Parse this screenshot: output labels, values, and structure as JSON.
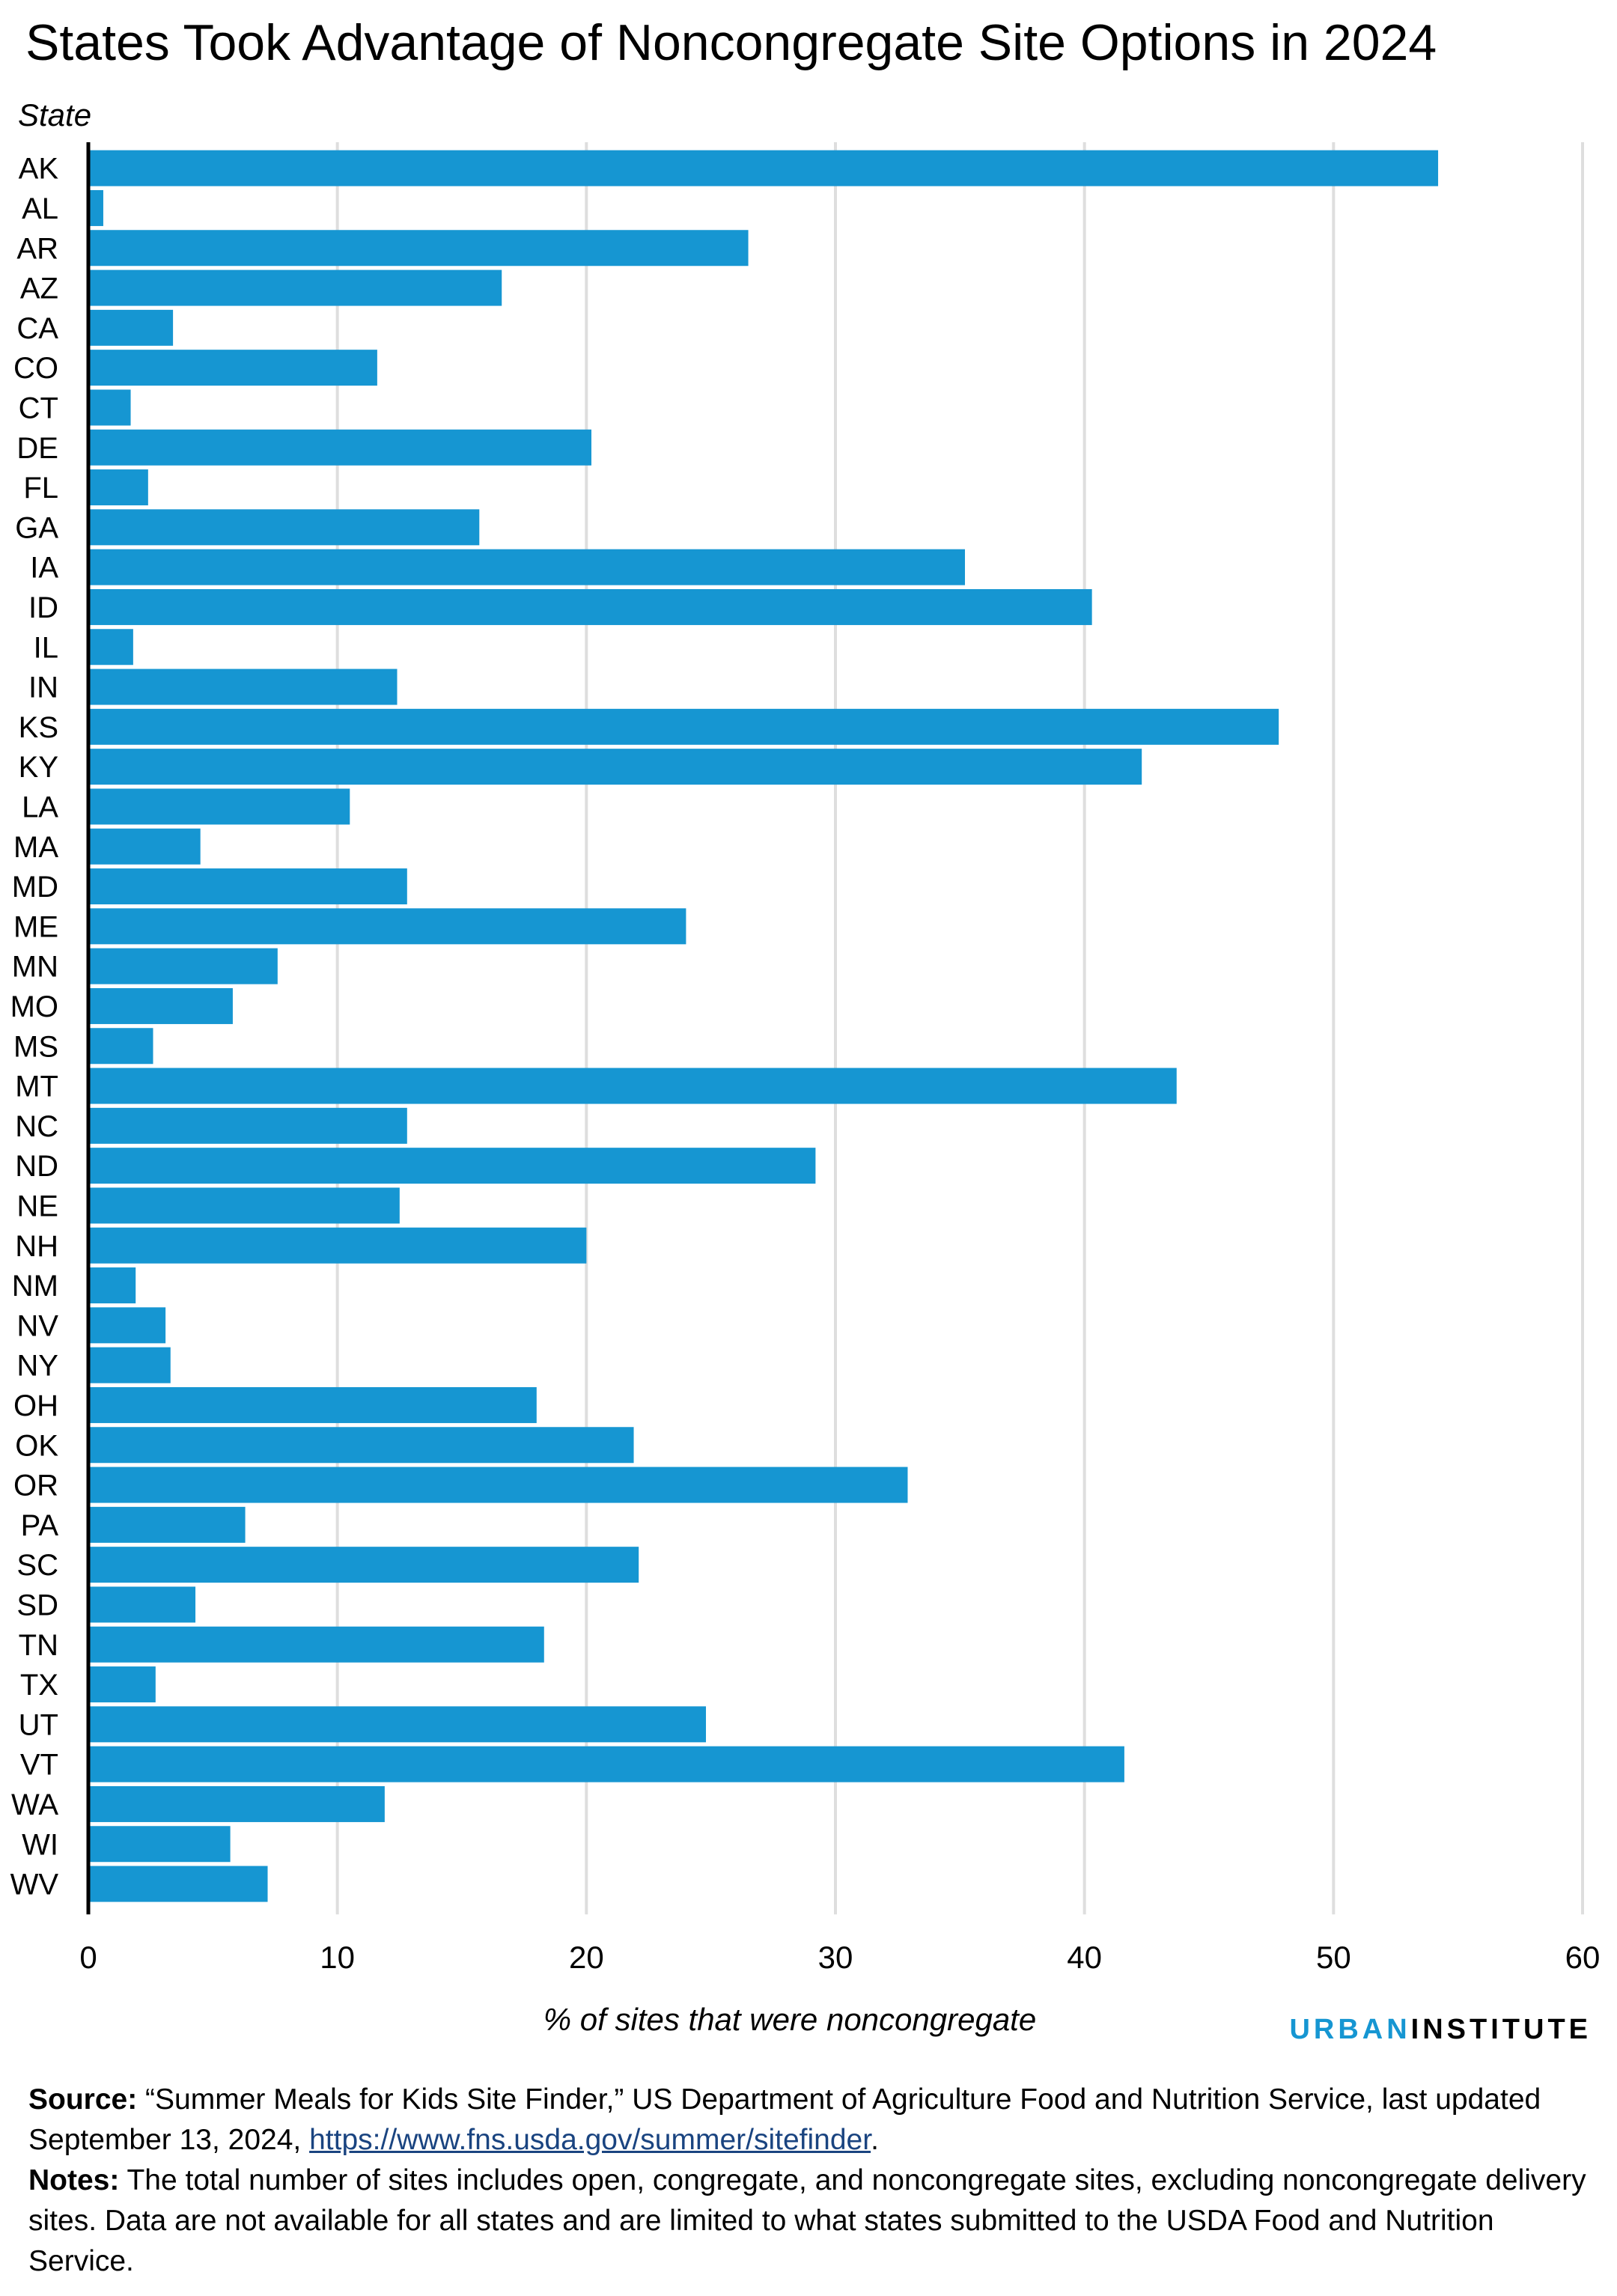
{
  "title": "States Took Advantage of Noncongregate Site Options in 2024",
  "colors": {
    "bar": "#1696d2",
    "grid": "#dedede",
    "axis": "#000000",
    "brand_blue": "#1696d2",
    "link": "#1a4480"
  },
  "chart_data": {
    "type": "bar",
    "orientation": "horizontal",
    "ylabel": "State",
    "xlabel": "% of sites that were noncongregate",
    "xlim": [
      0,
      60
    ],
    "xticks": [
      0,
      10,
      20,
      30,
      40,
      50,
      60
    ],
    "grid": "vertical",
    "legend": "none",
    "categories": [
      "AK",
      "AL",
      "AR",
      "AZ",
      "CA",
      "CO",
      "CT",
      "DE",
      "FL",
      "GA",
      "IA",
      "ID",
      "IL",
      "IN",
      "KS",
      "KY",
      "LA",
      "MA",
      "MD",
      "ME",
      "MN",
      "MO",
      "MS",
      "MT",
      "NC",
      "ND",
      "NE",
      "NH",
      "NM",
      "NV",
      "NY",
      "OH",
      "OK",
      "OR",
      "PA",
      "SC",
      "SD",
      "TN",
      "TX",
      "UT",
      "VT",
      "WA",
      "WI",
      "WV"
    ],
    "values": [
      54.2,
      0.6,
      26.5,
      16.6,
      3.4,
      11.6,
      1.7,
      20.2,
      2.4,
      15.7,
      35.2,
      40.3,
      1.8,
      12.4,
      47.8,
      42.3,
      10.5,
      4.5,
      12.8,
      24.0,
      7.6,
      5.8,
      2.6,
      43.7,
      12.8,
      29.2,
      12.5,
      20.0,
      1.9,
      3.1,
      3.3,
      18.0,
      21.9,
      32.9,
      6.3,
      22.1,
      4.3,
      18.3,
      2.7,
      24.8,
      41.6,
      11.9,
      5.7,
      7.2
    ]
  },
  "brand": {
    "part1": "URBAN",
    "part2": "INSTITUTE"
  },
  "footer": {
    "source_label": "Source:",
    "source_text": " “Summer Meals for Kids Site Finder,” US Department of Agriculture Food and Nutrition Service, last updated September 13, 2024, ",
    "source_link": "https://www.fns.usda.gov/summer/sitefinder",
    "source_end": ".",
    "notes_label": "Notes:",
    "notes_text": " The total number of sites includes open, congregate, and noncongregate sites, excluding noncongregate delivery sites. Data are not available for all states and are limited to what states submitted to the USDA Food and Nutrition Service."
  }
}
